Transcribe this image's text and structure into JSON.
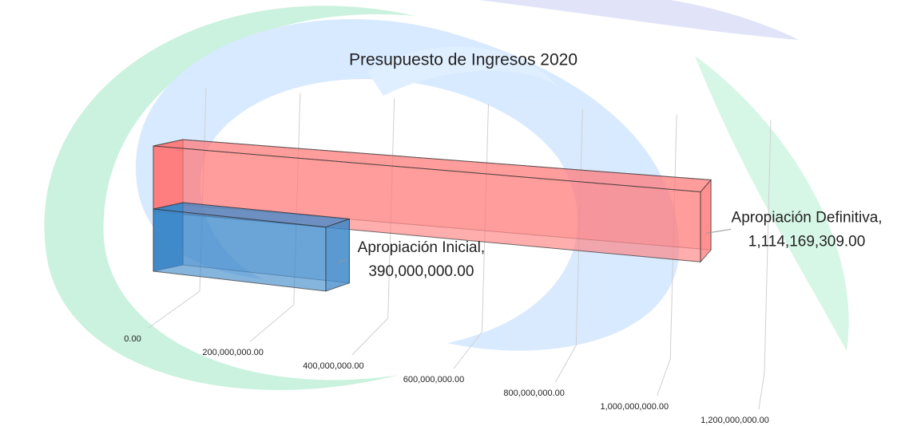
{
  "chart_data": {
    "type": "bar3d",
    "orientation": "horizontal",
    "title": "Presupuesto de Ingresos 2020",
    "categories": [
      null
    ],
    "series": [
      {
        "name": "Apropiación Inicial",
        "color": "#3a86c8",
        "values": [
          390000000
        ],
        "value_labels": [
          "390,000,000.00"
        ]
      },
      {
        "name": "Apropiación Definitiva",
        "color": "#ff7a7a",
        "values": [
          1114169309
        ],
        "value_labels": [
          "1,114,169,309.00"
        ]
      }
    ],
    "data_label_separator": ",",
    "xlim": [
      0,
      1200000000
    ],
    "xticks": [
      {
        "value": 0,
        "label": "0.00"
      },
      {
        "value": 200000000,
        "label": "200,000,000.00"
      },
      {
        "value": 400000000,
        "label": "400,000,000.00"
      },
      {
        "value": 600000000,
        "label": "600,000,000.00"
      },
      {
        "value": 800000000,
        "label": "800,000,000.00"
      },
      {
        "value": 1000000000,
        "label": "1,000,000,000.00"
      },
      {
        "value": 1200000000,
        "label": "1,200,000,000.00"
      }
    ],
    "grid": true
  }
}
